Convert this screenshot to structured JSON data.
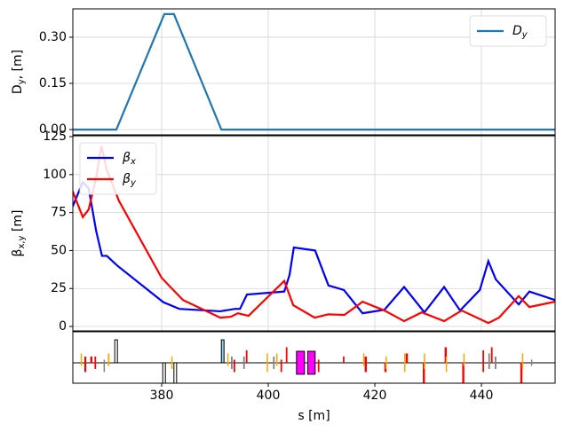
{
  "chart_data": [
    {
      "type": "line",
      "ylabel": "Dy, [m]",
      "xlim": [
        363.33,
        453.83
      ],
      "xticks": [
        380,
        400,
        420,
        440
      ],
      "ylim": [
        -0.017,
        0.392
      ],
      "yticks": [
        {
          "value": 0,
          "label": "0.00"
        },
        0.15,
        {
          "value": 0.3,
          "label": "0.30"
        }
      ],
      "grid": true,
      "legend": "upper right",
      "series": [
        {
          "name": "Dy",
          "color": "#1f77b4",
          "x": [
            363.33,
            371.5,
            380.5,
            382.3,
            391.2,
            453.83
          ],
          "values": [
            0,
            0,
            0.375,
            0.375,
            0,
            0
          ]
        }
      ]
    },
    {
      "type": "line",
      "ylabel": "βx,y [m]",
      "xlim": [
        363.33,
        453.83
      ],
      "xticks": [
        380,
        400,
        420,
        440
      ],
      "ylim": [
        -2.9,
        125.6
      ],
      "yticks": [
        0,
        25,
        50,
        75,
        100,
        125
      ],
      "grid": true,
      "legend": "upper left",
      "series": [
        {
          "name": "βx",
          "color": "#0000ff",
          "x": [
            363.3,
            365.2,
            366.3,
            367.7,
            368.8,
            369.7,
            371.7,
            380.3,
            383.3,
            391,
            393.8,
            394.7,
            396,
            403,
            404,
            404.8,
            408.8,
            411.3,
            414.2,
            417.7,
            421.8,
            425.5,
            429.3,
            433,
            436,
            439.7,
            441.3,
            442.7,
            447,
            449,
            453.8
          ],
          "values": [
            79,
            95,
            91,
            63,
            46.5,
            46.5,
            40,
            16,
            11.6,
            10,
            11.6,
            11.6,
            21,
            23,
            34,
            52,
            50,
            27,
            24,
            8.7,
            11,
            26,
            9.3,
            26,
            10.5,
            24,
            43,
            31,
            14.5,
            23,
            17.4
          ]
        },
        {
          "name": "βy",
          "color": "#ff0000",
          "x": [
            363.3,
            365.2,
            366.3,
            367.7,
            368.7,
            369.7,
            372,
            380,
            384,
            391,
            393,
            394.3,
            396.3,
            403,
            404.7,
            408.7,
            411.3,
            414.3,
            417.7,
            421.8,
            425.5,
            428.8,
            433,
            436.3,
            441.3,
            443.3,
            447,
            449,
            453.8
          ],
          "values": [
            89,
            72,
            77,
            98,
            119,
            103,
            82.6,
            32,
            17.4,
            5.8,
            6.4,
            8.7,
            7,
            30,
            14,
            5.8,
            8,
            7.6,
            16.3,
            10.5,
            3.5,
            9.3,
            3.5,
            10.5,
            2.3,
            5.8,
            20,
            12.8,
            16.3
          ]
        }
      ]
    },
    {
      "type": "lattice",
      "xlabel": "s [m]",
      "xlim": [
        363.33,
        453.83
      ],
      "xticks": [
        380,
        400,
        420,
        440
      ],
      "ylim": [
        -0.66,
        1
      ],
      "elements": [
        {
          "s": 364.8,
          "length": 0.2,
          "top": 0.3,
          "bottom": -0.1,
          "color": "#ffa500"
        },
        {
          "s": 365.5,
          "length": 0.35,
          "top": 0.2,
          "bottom": -0.3,
          "color": "#ff0000"
        },
        {
          "s": 366.6,
          "length": 0.4,
          "top": 0.2,
          "bottom": 0,
          "color": "#ff0000"
        },
        {
          "s": 367.4,
          "length": 0.3,
          "top": 0.2,
          "bottom": -0.2,
          "color": "#ff0000"
        },
        {
          "s": 369.1,
          "length": 0.2,
          "top": 0.1,
          "bottom": -0.3,
          "color": "#808080"
        },
        {
          "s": 369.9,
          "length": 0.3,
          "top": 0.3,
          "bottom": -0.1,
          "color": "#ffa500"
        },
        {
          "s": 371.2,
          "length": 0.5,
          "top": 0.74,
          "bottom": 0,
          "color": "#ffffff"
        },
        {
          "s": 380.2,
          "length": 0.5,
          "top": 0,
          "bottom": -0.66,
          "color": "#ffffff"
        },
        {
          "s": 381.8,
          "length": 0.2,
          "top": 0.2,
          "bottom": -0.2,
          "color": "#ffa500"
        },
        {
          "s": 382.3,
          "length": 0.5,
          "top": 0,
          "bottom": -0.66,
          "color": "#ffffff"
        },
        {
          "s": 391.2,
          "length": 0.5,
          "top": 0.74,
          "bottom": 0,
          "color": "#87ceeb"
        },
        {
          "s": 392.3,
          "length": 0.2,
          "top": 0.3,
          "bottom": -0.1,
          "color": "#ffa500"
        },
        {
          "s": 393.0,
          "length": 0.3,
          "top": 0.2,
          "bottom": -0.2,
          "color": "#808080"
        },
        {
          "s": 393.5,
          "length": 0.3,
          "top": 0.1,
          "bottom": -0.3,
          "color": "#ff0000"
        },
        {
          "s": 395.3,
          "length": 0.3,
          "top": 0.2,
          "bottom": -0.2,
          "color": "#808080"
        },
        {
          "s": 395.8,
          "length": 0.3,
          "top": 0.4,
          "bottom": 0,
          "color": "#ff0000"
        },
        {
          "s": 399.7,
          "length": 0.2,
          "top": 0.3,
          "bottom": -0.3,
          "color": "#ffa500"
        },
        {
          "s": 400.9,
          "length": 0.3,
          "top": 0.2,
          "bottom": -0.2,
          "color": "#808080"
        },
        {
          "s": 401.5,
          "length": 0.2,
          "top": 0.3,
          "bottom": -0.1,
          "color": "#ffa500"
        },
        {
          "s": 402.3,
          "length": 0.3,
          "top": 0.1,
          "bottom": -0.3,
          "color": "#ff0000"
        },
        {
          "s": 403.3,
          "length": 0.3,
          "top": 0.5,
          "bottom": 0,
          "color": "#ff0000"
        },
        {
          "s": 405.3,
          "length": 1.5,
          "top": 0.37,
          "bottom": -0.37,
          "color": "#ff00ff"
        },
        {
          "s": 407.4,
          "length": 1.4,
          "top": 0.37,
          "bottom": -0.37,
          "color": "#ff00ff"
        },
        {
          "s": 409.3,
          "length": 0.3,
          "top": 0.1,
          "bottom": -0.3,
          "color": "#ff0000"
        },
        {
          "s": 414.0,
          "length": 0.3,
          "top": 0.2,
          "bottom": 0,
          "color": "#ff0000"
        },
        {
          "s": 417.8,
          "length": 0.2,
          "top": 0.3,
          "bottom": -0.1,
          "color": "#ffa500"
        },
        {
          "s": 418.1,
          "length": 0.4,
          "top": 0.2,
          "bottom": -0.3,
          "color": "#ff0000"
        },
        {
          "s": 421.8,
          "length": 0.4,
          "top": 0,
          "bottom": -0.3,
          "color": "#ff0000"
        },
        {
          "s": 422.0,
          "length": 0.2,
          "top": 0.2,
          "bottom": -0.2,
          "color": "#ffa500"
        },
        {
          "s": 425.5,
          "length": 0.2,
          "top": 0.3,
          "bottom": -0.3,
          "color": "#ffa500"
        },
        {
          "s": 425.8,
          "length": 0.4,
          "top": 0.3,
          "bottom": 0,
          "color": "#ff0000"
        },
        {
          "s": 429.0,
          "length": 0.4,
          "top": 0,
          "bottom": -0.66,
          "color": "#ff0000"
        },
        {
          "s": 429.2,
          "length": 0.2,
          "top": 0.3,
          "bottom": -0.2,
          "color": "#ffa500"
        },
        {
          "s": 433.1,
          "length": 0.4,
          "top": 0.5,
          "bottom": 0,
          "color": "#ff0000"
        },
        {
          "s": 433.3,
          "length": 0.2,
          "top": 0.2,
          "bottom": -0.3,
          "color": "#ffa500"
        },
        {
          "s": 436.4,
          "length": 0.4,
          "top": 0,
          "bottom": -0.66,
          "color": "#ff0000"
        },
        {
          "s": 436.6,
          "length": 0.2,
          "top": 0.3,
          "bottom": -0.1,
          "color": "#ffa500"
        },
        {
          "s": 440.2,
          "length": 0.3,
          "top": 0.4,
          "bottom": -0.3,
          "color": "#ff0000"
        },
        {
          "s": 441.3,
          "length": 0.3,
          "top": 0.3,
          "bottom": -0.2,
          "color": "#808080"
        },
        {
          "s": 441.8,
          "length": 0.3,
          "top": 0.5,
          "bottom": 0,
          "color": "#ff0000"
        },
        {
          "s": 442.5,
          "length": 0.3,
          "top": 0.2,
          "bottom": -0.2,
          "color": "#808080"
        },
        {
          "s": 447.3,
          "length": 0.4,
          "top": 0,
          "bottom": -0.66,
          "color": "#ff0000"
        },
        {
          "s": 447.6,
          "length": 0.2,
          "top": 0.3,
          "bottom": -0.2,
          "color": "#ffa500"
        },
        {
          "s": 449.3,
          "length": 0.2,
          "top": 0.1,
          "bottom": -0.1,
          "color": "#808080"
        }
      ]
    }
  ]
}
